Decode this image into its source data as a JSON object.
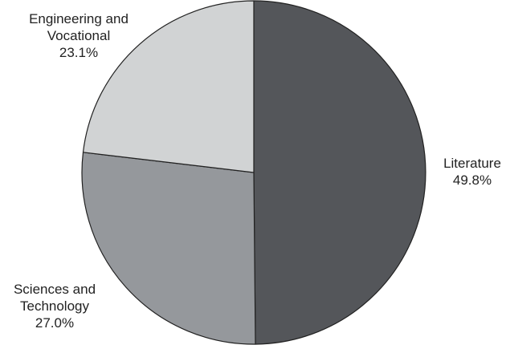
{
  "chart_data": {
    "type": "pie",
    "slices": [
      {
        "label_lines": [
          "Literature"
        ],
        "value": 49.8,
        "value_label": "49.8%",
        "color": "#54565a"
      },
      {
        "label_lines": [
          "Sciences and",
          "Technology"
        ],
        "value": 27.0,
        "value_label": "27.0%",
        "color": "#95989c"
      },
      {
        "label_lines": [
          "Engineering and",
          "Vocational"
        ],
        "value": 23.1,
        "value_label": "23.1%",
        "color": "#d1d3d4"
      }
    ],
    "start": "12 o'clock",
    "direction": "clockwise",
    "outline_color": "#222222",
    "legend": "none"
  }
}
